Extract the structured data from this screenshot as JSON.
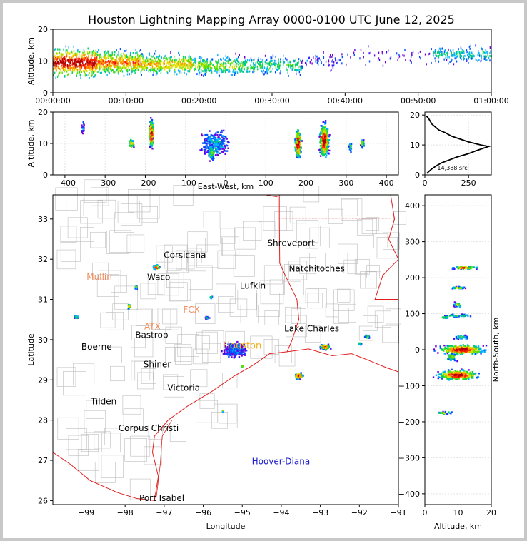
{
  "title": "Houston Lightning Mapping Array 0000-0100 UTC June 12, 2025",
  "colors": {
    "axis": "#000000",
    "county": "#bdbdbd",
    "state": "#e02020",
    "coast": "#e02020",
    "track": "#000000"
  },
  "chart_data": [
    {
      "name": "altitude-vs-time",
      "type": "scatter",
      "ylabel": "Altitude, km",
      "xlabel": "",
      "xticks": [
        "00:00:00",
        "00:10:00",
        "00:20:00",
        "00:30:00",
        "00:40:00",
        "00:50:00",
        "01:00:00"
      ],
      "xlim_minutes": [
        0,
        60
      ],
      "ylim": [
        0,
        20
      ],
      "yticks": [
        0,
        10,
        20
      ],
      "clusters": [
        {
          "t": [
            0,
            6
          ],
          "z": [
            3,
            16
          ],
          "density": 1.0
        },
        {
          "t": [
            6,
            12
          ],
          "z": [
            4,
            15
          ],
          "density": 0.8
        },
        {
          "t": [
            12,
            19
          ],
          "z": [
            4,
            14
          ],
          "density": 0.7
        },
        {
          "t": [
            19,
            26
          ],
          "z": [
            4,
            13
          ],
          "density": 0.55
        },
        {
          "t": [
            26,
            34
          ],
          "z": [
            4,
            13
          ],
          "density": 0.45
        },
        {
          "t": [
            34,
            40
          ],
          "z": [
            6,
            14
          ],
          "density": 0.12
        },
        {
          "t": [
            40,
            52
          ],
          "z": [
            7,
            16
          ],
          "density": 0.1
        },
        {
          "t": [
            52,
            60
          ],
          "z": [
            8,
            16
          ],
          "density": 0.35
        }
      ]
    },
    {
      "name": "altitude-vs-east-west",
      "type": "scatter",
      "xlabel": "East-West, km",
      "ylabel": "Altitude, km",
      "xlim": [
        -430,
        430
      ],
      "ylim": [
        0,
        20
      ],
      "xticks": [
        -400,
        -300,
        -200,
        -100,
        0,
        100,
        200,
        300,
        400
      ],
      "yticks": [
        0,
        10,
        20
      ]
    },
    {
      "name": "altitude-histogram",
      "type": "line",
      "annotation": "14,388 src",
      "xlim": [
        0,
        380
      ],
      "ylim": [
        0,
        21
      ],
      "xticks": [
        0,
        250
      ],
      "yticks": [
        0,
        10,
        20
      ],
      "profile": [
        [
          0.5,
          12
        ],
        [
          1,
          20
        ],
        [
          2,
          40
        ],
        [
          3,
          65
        ],
        [
          4,
          95
        ],
        [
          5,
          140
        ],
        [
          6,
          185
        ],
        [
          7,
          245
        ],
        [
          8,
          290
        ],
        [
          9,
          340
        ],
        [
          9.5,
          365
        ],
        [
          10,
          320
        ],
        [
          11,
          250
        ],
        [
          12,
          200
        ],
        [
          13,
          150
        ],
        [
          14,
          120
        ],
        [
          15,
          80
        ],
        [
          16,
          60
        ],
        [
          17,
          40
        ],
        [
          18,
          30
        ],
        [
          19,
          20
        ],
        [
          19.7,
          8
        ]
      ]
    },
    {
      "name": "plan-view-map",
      "type": "scatter",
      "xlabel": "Longitude",
      "ylabel": "Latitude",
      "xlim": [
        -99.85,
        -91
      ],
      "ylim": [
        25.9,
        33.6
      ],
      "xticks": [
        -99,
        -98,
        -97,
        -96,
        -95,
        -94,
        -93,
        -92,
        -91
      ],
      "yticks": [
        26,
        27,
        28,
        29,
        30,
        31,
        32,
        33
      ],
      "cities": [
        {
          "name": "Shreveport",
          "lon": -93.75,
          "lat": 32.4
        },
        {
          "name": "Corsicana",
          "lon": -96.47,
          "lat": 32.1
        },
        {
          "name": "Mullin",
          "lon": -98.66,
          "lat": 31.56,
          "color": "#f28c5a"
        },
        {
          "name": "Waco",
          "lon": -97.14,
          "lat": 31.55
        },
        {
          "name": "Natchitoches",
          "lon": -93.09,
          "lat": 31.76
        },
        {
          "name": "Lufkin",
          "lon": -94.73,
          "lat": 31.34
        },
        {
          "name": "FCX",
          "lon": -96.3,
          "lat": 30.74,
          "color": "#f28c5a"
        },
        {
          "name": "ATX",
          "lon": -97.3,
          "lat": 30.33,
          "color": "#f28c5a"
        },
        {
          "name": "Bastrop",
          "lon": -97.32,
          "lat": 30.11
        },
        {
          "name": "Lake Charles",
          "lon": -93.22,
          "lat": 30.27
        },
        {
          "name": "Boerne",
          "lon": -98.73,
          "lat": 29.82
        },
        {
          "name": "Houston",
          "lon": -95.0,
          "lat": 29.85,
          "color": "#f0b020"
        },
        {
          "name": "Shiner",
          "lon": -97.18,
          "lat": 29.39
        },
        {
          "name": "Victoria",
          "lon": -96.5,
          "lat": 28.8
        },
        {
          "name": "Tilden",
          "lon": -98.55,
          "lat": 28.46
        },
        {
          "name": "Corpus Christi",
          "lon": -97.4,
          "lat": 27.8
        },
        {
          "name": "Hoover-Diana",
          "lon": -94.01,
          "lat": 26.97,
          "color": "#2020d0"
        },
        {
          "name": "Port Isabel",
          "lon": -97.06,
          "lat": 26.06
        }
      ]
    },
    {
      "name": "north-south-vs-altitude",
      "type": "scatter",
      "xlabel": "Altitude, km",
      "ylabel": "North-South, km",
      "xlim": [
        0,
        20
      ],
      "ylim": [
        -430,
        430
      ],
      "xticks": [
        0,
        10,
        20
      ],
      "yticks": [
        -400,
        -300,
        -200,
        -100,
        0,
        100,
        200,
        300,
        400
      ]
    }
  ]
}
